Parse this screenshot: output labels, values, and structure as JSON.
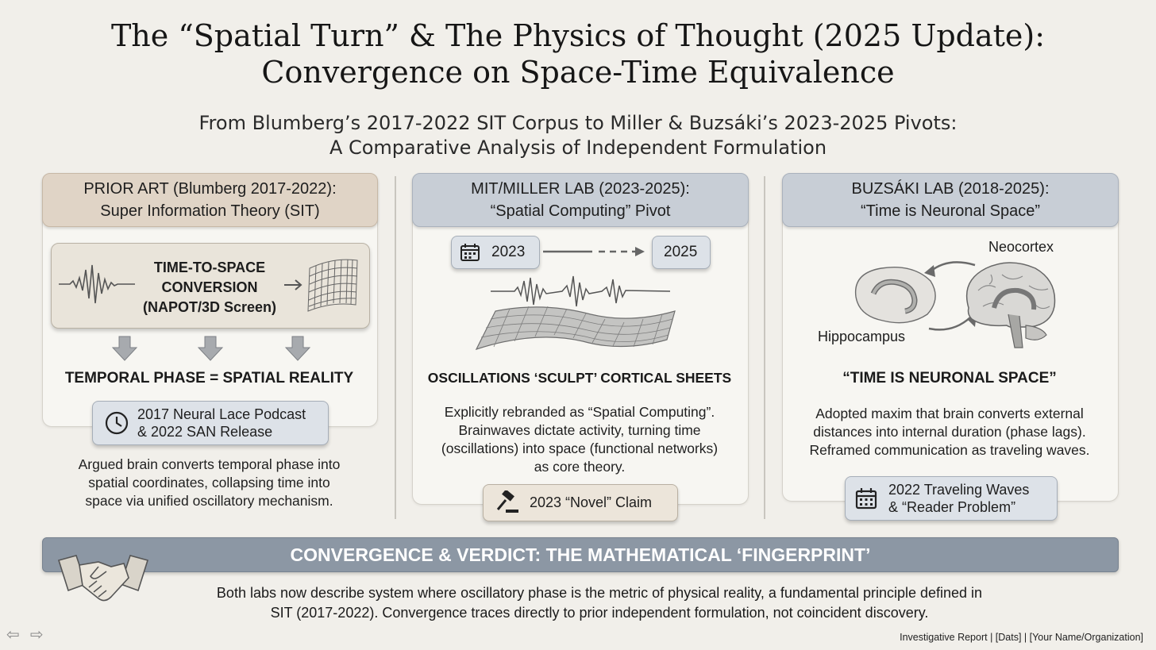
{
  "title": {
    "line1": "The “Spatial Turn” & The Physics of Thought (2025 Update):",
    "line2": "Convergence on Space-Time Equivalence"
  },
  "subtitle": {
    "line1": "From Blumberg’s 2017-2022 SIT Corpus to Miller & Buzsáki’s 2023-2025 Pivots:",
    "line2": "A Comparative Analysis of Independent Formulation"
  },
  "panels": {
    "prior_art": {
      "header_line1": "PRIOR ART (Blumberg 2017-2022):",
      "header_line2": "Super Information Theory (SIT)",
      "conversion_line1": "TIME-TO-SPACE",
      "conversion_line2": "CONVERSION",
      "conversion_line3": "(NAPOT/3D Screen)",
      "key_claim": "TEMPORAL PHASE = SPATIAL REALITY",
      "evidence_line1": "2017 Neural Lace Podcast",
      "evidence_line2": "& 2022 SAN Release",
      "body_line1": "Argued brain converts temporal phase into",
      "body_line2": "spatial coordinates, collapsing time into",
      "body_line3": "space via unified oscillatory mechanism.",
      "icons": [
        "waveform-icon",
        "grid-sheet-icon",
        "down-arrow-icon",
        "clock-icon"
      ]
    },
    "miller": {
      "header_line1": "MIT/MILLER LAB (2023-2025):",
      "header_line2": "“Spatial Computing” Pivot",
      "year_start": "2023",
      "year_end": "2025",
      "key_claim": "OSCILLATIONS ‘SCULPT’ CORTICAL SHEETS",
      "body_line1": "Explicitly rebranded as “Spatial Computing”.",
      "body_line2": "Brainwaves dictate activity, turning time",
      "body_line3": "(oscillations) into space (functional networks)",
      "body_line4": "as core theory.",
      "evidence": "2023 “Novel” Claim",
      "icons": [
        "calendar-icon",
        "oscillation-icon",
        "cortical-sheet-icon",
        "gavel-icon"
      ]
    },
    "buzsaki": {
      "header_line1": "BUZSÁKI LAB (2018-2025):",
      "header_line2": "“Time is Neuronal Space”",
      "label_neocortex": "Neocortex",
      "label_hippocampus": "Hippocampus",
      "key_claim": "“TIME IS NEURONAL SPACE”",
      "body_line1": "Adopted maxim that brain converts external",
      "body_line2": "distances into internal duration (phase lags).",
      "body_line3": "Reframed communication as traveling waves.",
      "evidence_line1": "2022 Traveling Waves",
      "evidence_line2": "& “Reader Problem”",
      "icons": [
        "hippocampus-icon",
        "brain-icon",
        "calendar-icon"
      ]
    }
  },
  "verdict": {
    "heading": "CONVERGENCE & VERDICT: THE MATHEMATICAL ‘FINGERPRINT’",
    "line1": "Both labs now describe system where oscillatory phase is the metric of physical reality, a fundamental principle defined in",
    "line2": "SIT (2017-2022). Convergence traces directly to prior independent formulation, not coincident discovery.",
    "icon": "handshake-icon"
  },
  "footer": "Investigative Report | [Dats] | [Your Name/Organization]",
  "nav": {
    "prev": "⇦",
    "next": "⇨"
  },
  "colors": {
    "background": "#f1efea",
    "tan_header": "#e0d4c6",
    "gray_header": "#c8ced6",
    "verdict_bar": "#8c97a4"
  }
}
